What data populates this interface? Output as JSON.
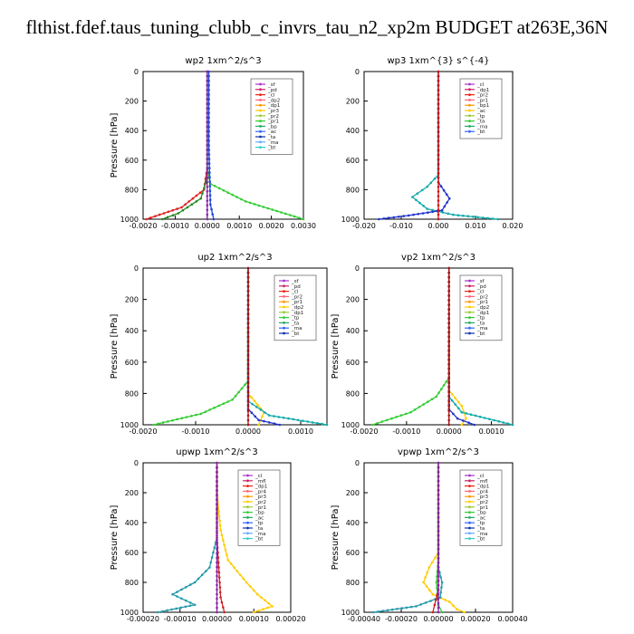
{
  "figure": {
    "title": "flthist.fdef.taus_tuning_clubb_c_invrs_tau_n2_xp2m  BUDGET at263E,36N"
  },
  "chart_data": [
    {
      "type": "line",
      "title": "wp2  1xm^2/s^3",
      "ylabel": "Pressure [hPa]",
      "ylim": [
        1000,
        0
      ],
      "yticks": [
        "0",
        "200",
        "400",
        "600",
        "800",
        "1000"
      ],
      "xlim": [
        -0.002,
        0.003
      ],
      "xticks": [
        "-0.0020",
        "-0.0010",
        "0.0000",
        "0.0010",
        "0.0020",
        "0.0030"
      ],
      "legend": [
        "_sf",
        "_pd",
        "_cl",
        "_dp2",
        "_dp1",
        "_pr3",
        "_pr2",
        "_pr1",
        "_bp",
        "_ac",
        "_ta",
        "_ma",
        "_bt"
      ],
      "series": [
        {
          "name": "_dp1",
          "color": "#dd2222",
          "points": [
            [
              0,
              0
            ],
            [
              0,
              650
            ],
            [
              -0.0001,
              800
            ],
            [
              -0.0008,
              920
            ],
            [
              -0.0019,
              1000
            ]
          ]
        },
        {
          "name": "_bp",
          "color": "#33cc33",
          "points": [
            [
              0,
              0
            ],
            [
              0,
              650
            ],
            [
              0.0001,
              760
            ],
            [
              0.0012,
              880
            ],
            [
              0.003,
              1000
            ]
          ]
        },
        {
          "name": "_pr3",
          "color": "#228822",
          "points": [
            [
              0,
              0
            ],
            [
              0,
              720
            ],
            [
              -0.0002,
              860
            ],
            [
              -0.0009,
              960
            ],
            [
              -0.0014,
              1000
            ]
          ]
        },
        {
          "name": "_ma",
          "color": "#2244dd",
          "points": [
            [
              5e-05,
              0
            ],
            [
              5e-05,
              500
            ],
            [
              0.0001,
              900
            ],
            [
              0.0002,
              1000
            ]
          ]
        },
        {
          "name": "_cl",
          "color": "#8822aa",
          "points": [
            [
              0,
              0
            ],
            [
              0,
              1000
            ]
          ]
        }
      ]
    },
    {
      "type": "line",
      "title": "wp3  1xm^{3} s^{-4}",
      "ylabel": "",
      "ylim": [
        1000,
        0
      ],
      "yticks": [
        "0",
        "200",
        "400",
        "600",
        "800",
        "1000"
      ],
      "xlim": [
        -0.02,
        0.02
      ],
      "xticks": [
        "-0.020",
        "-0.010",
        "0.000",
        "0.010",
        "0.020"
      ],
      "legend": [
        "_cl",
        "_dp1",
        "_pr2",
        "_pr1",
        "_bp1",
        "_ac",
        "_tp",
        "_ta",
        "_ma",
        "_bt"
      ],
      "series": [
        {
          "name": "_ac",
          "color": "#11aaaa",
          "points": [
            [
              0,
              0
            ],
            [
              0,
              700
            ],
            [
              -0.003,
              780
            ],
            [
              -0.007,
              850
            ],
            [
              -0.003,
              930
            ],
            [
              0.004,
              970
            ],
            [
              0.016,
              1000
            ]
          ]
        },
        {
          "name": "_tp",
          "color": "#2233cc",
          "points": [
            [
              0,
              0
            ],
            [
              0,
              750
            ],
            [
              0.003,
              860
            ],
            [
              0.001,
              940
            ],
            [
              -0.008,
              975
            ],
            [
              -0.016,
              1000
            ]
          ]
        },
        {
          "name": "_dp1",
          "color": "#cc1111",
          "points": [
            [
              0,
              0
            ],
            [
              0,
              1000
            ]
          ]
        }
      ]
    },
    {
      "type": "line",
      "title": "up2  1xm^2/s^3",
      "ylabel": "Pressure [hPa]",
      "ylim": [
        1000,
        0
      ],
      "yticks": [
        "0",
        "200",
        "400",
        "600",
        "800",
        "1000"
      ],
      "xlim": [
        -0.002,
        0.0015
      ],
      "xticks": [
        "-0.0020",
        "-0.0010",
        "0.0000",
        "0.0010"
      ],
      "legend": [
        "_sf",
        "_pd",
        "_cl",
        "_pr2",
        "_pr1",
        "_dp2",
        "_dp1",
        "_tp",
        "_ta",
        "_ma",
        "_bt"
      ],
      "series": [
        {
          "name": "_dp1",
          "color": "#33cc33",
          "points": [
            [
              0,
              0
            ],
            [
              0,
              720
            ],
            [
              -0.0003,
              840
            ],
            [
              -0.0009,
              930
            ],
            [
              -0.0018,
              1000
            ]
          ]
        },
        {
          "name": "_pr1",
          "color": "#ffcc00",
          "points": [
            [
              0,
              0
            ],
            [
              0,
              800
            ],
            [
              0.0003,
              920
            ],
            [
              0.0002,
              1000
            ]
          ]
        },
        {
          "name": "_ta",
          "color": "#11aaaa",
          "points": [
            [
              0,
              0
            ],
            [
              0,
              850
            ],
            [
              0.0004,
              940
            ],
            [
              0.0015,
              1000
            ]
          ]
        },
        {
          "name": "_tp",
          "color": "#2233cc",
          "points": [
            [
              0,
              0
            ],
            [
              0,
              900
            ],
            [
              0.0002,
              970
            ],
            [
              0.0006,
              1000
            ]
          ]
        },
        {
          "name": "_cl",
          "color": "#aa1111",
          "points": [
            [
              0,
              0
            ],
            [
              0,
              1000
            ]
          ]
        }
      ]
    },
    {
      "type": "line",
      "title": "vp2  1xm^2/s^3",
      "ylabel": "Pressure [hPa]",
      "ylim": [
        1000,
        0
      ],
      "yticks": [
        "0",
        "200",
        "400",
        "600",
        "800",
        "1000"
      ],
      "xlim": [
        -0.002,
        0.0015
      ],
      "xticks": [
        "-0.0020",
        "-0.0010",
        "0.0000",
        "0.0010"
      ],
      "legend": [
        "_sf",
        "_pd",
        "_cl",
        "_pr2",
        "_pr1",
        "_dp2",
        "_dp1",
        "_tp",
        "_ta",
        "_ma",
        "_bt"
      ],
      "series": [
        {
          "name": "_dp1",
          "color": "#33cc33",
          "points": [
            [
              0,
              0
            ],
            [
              0,
              700
            ],
            [
              -0.0003,
              820
            ],
            [
              -0.0009,
              920
            ],
            [
              -0.0018,
              1000
            ]
          ]
        },
        {
          "name": "_pr1",
          "color": "#ffcc00",
          "points": [
            [
              0,
              0
            ],
            [
              0,
              780
            ],
            [
              0.0003,
              880
            ],
            [
              0.0004,
              960
            ],
            [
              0.0003,
              1000
            ]
          ]
        },
        {
          "name": "_ta",
          "color": "#11aaaa",
          "points": [
            [
              0,
              0
            ],
            [
              0,
              820
            ],
            [
              0.0003,
              920
            ],
            [
              0.0015,
              1000
            ]
          ]
        },
        {
          "name": "_tp",
          "color": "#2233cc",
          "points": [
            [
              0,
              0
            ],
            [
              0,
              900
            ],
            [
              0.0002,
              960
            ],
            [
              0.0006,
              1000
            ]
          ]
        },
        {
          "name": "_cl",
          "color": "#aa1111",
          "points": [
            [
              0,
              0
            ],
            [
              0,
              1000
            ]
          ]
        }
      ]
    },
    {
      "type": "line",
      "title": "upwp  1xm^2/s^3",
      "ylabel": "Pressure [hPa]",
      "ylim": [
        1000,
        0
      ],
      "yticks": [
        "0",
        "200",
        "400",
        "600",
        "800",
        "1000"
      ],
      "xlim": [
        -0.0002,
        0.0002
      ],
      "xticks": [
        "-0.00020",
        "-0.00010",
        "0.00000",
        "0.00010",
        "0.00020"
      ],
      "legend": [
        "_cl",
        "_mfl",
        "_dp1",
        "_pr4",
        "_pr3",
        "_pr2",
        "_pr1",
        "_bp",
        "_ac",
        "_tp",
        "_ta",
        "_ma",
        "_bt"
      ],
      "series": [
        {
          "name": "_pr1",
          "color": "#ffcc00",
          "points": [
            [
              0,
              0
            ],
            [
              0,
              200
            ],
            [
              1e-05,
              450
            ],
            [
              3e-05,
              650
            ],
            [
              8e-05,
              800
            ],
            [
              0.00011,
              880
            ],
            [
              0.00015,
              960
            ],
            [
              0.0001,
              1000
            ]
          ]
        },
        {
          "name": "_tp",
          "color": "#2299aa",
          "points": [
            [
              0,
              0
            ],
            [
              0,
              500
            ],
            [
              -2e-05,
              700
            ],
            [
              -6e-05,
              800
            ],
            [
              -0.00012,
              880
            ],
            [
              -6e-05,
              950
            ],
            [
              -0.00016,
              1000
            ]
          ]
        },
        {
          "name": "_dp1",
          "color": "#cc2222",
          "points": [
            [
              0,
              0
            ],
            [
              0,
              500
            ],
            [
              5e-06,
              700
            ],
            [
              1e-05,
              900
            ],
            [
              2e-05,
              1000
            ]
          ]
        },
        {
          "name": "_cl",
          "color": "#8822aa",
          "points": [
            [
              0,
              0
            ],
            [
              0,
              1000
            ]
          ]
        }
      ]
    },
    {
      "type": "line",
      "title": "vpwp  1xm^2/s^3",
      "ylabel": "Pressure [hPa]",
      "ylim": [
        1000,
        0
      ],
      "yticks": [
        "0",
        "200",
        "400",
        "600",
        "800",
        "1000"
      ],
      "xlim": [
        -0.0004,
        0.0004
      ],
      "xticks": [
        "-0.00040",
        "-0.00020",
        "0.00000",
        "0.00020",
        "0.00040"
      ],
      "legend": [
        "_cl",
        "_mfl",
        "_dp1",
        "_pr4",
        "_pr3",
        "_pr2",
        "_pr1",
        "_bp",
        "_ac",
        "_tp",
        "_ta",
        "_ma",
        "_bt"
      ],
      "series": [
        {
          "name": "_pr1",
          "color": "#ffcc00",
          "points": [
            [
              0,
              0
            ],
            [
              0,
              600
            ],
            [
              -5e-05,
              700
            ],
            [
              -8e-05,
              800
            ],
            [
              -3e-05,
              880
            ],
            [
              6e-05,
              930
            ],
            [
              0.0001,
              980
            ],
            [
              0.00014,
              1000
            ]
          ]
        },
        {
          "name": "_tp",
          "color": "#2299aa",
          "points": [
            [
              0,
              0
            ],
            [
              0,
              700
            ],
            [
              2e-05,
              800
            ],
            [
              1e-05,
              900
            ],
            [
              -0.00012,
              960
            ],
            [
              -0.00035,
              1000
            ]
          ]
        },
        {
          "name": "_ac",
          "color": "#33cc33",
          "points": [
            [
              0,
              0
            ],
            [
              0,
              650
            ],
            [
              -1e-05,
              800
            ],
            [
              0,
              950
            ],
            [
              2e-05,
              1000
            ]
          ]
        },
        {
          "name": "_dp1",
          "color": "#cc2222",
          "points": [
            [
              0,
              0
            ],
            [
              0,
              850
            ],
            [
              -2e-05,
              950
            ],
            [
              -3e-05,
              1000
            ]
          ]
        },
        {
          "name": "_cl",
          "color": "#8822aa",
          "points": [
            [
              0,
              0
            ],
            [
              0,
              1000
            ]
          ]
        }
      ]
    }
  ]
}
